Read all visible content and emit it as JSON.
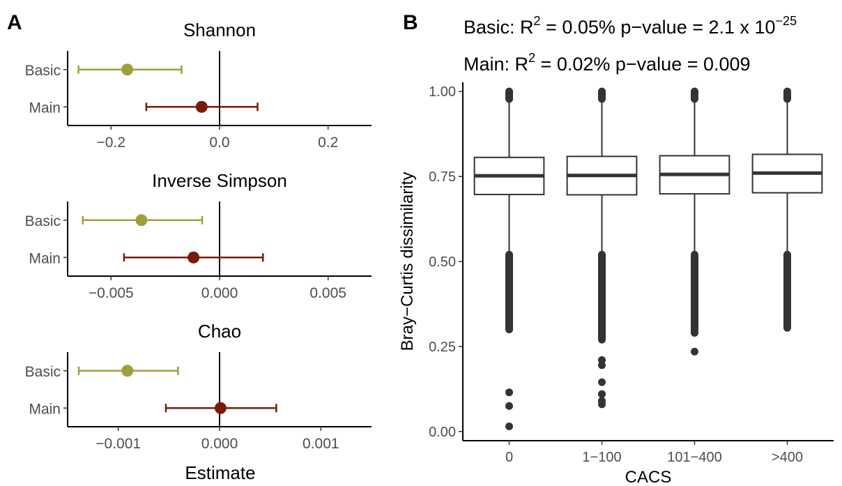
{
  "panel_a": {
    "tag": "A",
    "xlabel": "Estimate",
    "colors": {
      "Basic": "#a0a03a",
      "Main": "#7a1a08"
    }
  },
  "panel_b": {
    "tag": "B",
    "stats": [
      {
        "model": "Basic",
        "prefix": "Basic: R",
        "r2_sup": "2",
        "r2_text": " = 0.05%  p−value = 2.1 x 10",
        "p_exp": "−25"
      },
      {
        "model": "Main",
        "prefix": "Main: R",
        "r2_sup": "2",
        "r2_text": " = 0.02%  p−value = 0.009",
        "p_exp": ""
      }
    ]
  },
  "chart_data": [
    {
      "type": "scatter",
      "chart_kind": "forest",
      "title": "Shannon",
      "categories": [
        "Basic",
        "Main"
      ],
      "series": [
        {
          "name": "Basic",
          "estimate": -0.17,
          "ci_low": -0.26,
          "ci_high": -0.07
        },
        {
          "name": "Main",
          "estimate": -0.033,
          "ci_low": -0.135,
          "ci_high": 0.07
        }
      ],
      "xlim": [
        -0.28,
        0.28
      ],
      "xticks": [
        -0.2,
        0.0,
        0.2
      ],
      "xtick_labels": [
        "−0.2",
        "0.0",
        "0.2"
      ],
      "reference_line": 0
    },
    {
      "type": "scatter",
      "chart_kind": "forest",
      "title": "Inverse Simpson",
      "categories": [
        "Basic",
        "Main"
      ],
      "series": [
        {
          "name": "Basic",
          "estimate": -0.0036,
          "ci_low": -0.0063,
          "ci_high": -0.0008
        },
        {
          "name": "Main",
          "estimate": -0.0012,
          "ci_low": -0.0044,
          "ci_high": 0.002
        }
      ],
      "xlim": [
        -0.007,
        0.007
      ],
      "xticks": [
        -0.005,
        0.0,
        0.005
      ],
      "xtick_labels": [
        "−0.005",
        "0.000",
        "0.005"
      ],
      "reference_line": 0
    },
    {
      "type": "scatter",
      "chart_kind": "forest",
      "title": "Chao",
      "categories": [
        "Basic",
        "Main"
      ],
      "series": [
        {
          "name": "Basic",
          "estimate": -0.00091,
          "ci_low": -0.00139,
          "ci_high": -0.00041
        },
        {
          "name": "Main",
          "estimate": 1e-05,
          "ci_low": -0.00053,
          "ci_high": 0.00056
        }
      ],
      "xlim": [
        -0.0015,
        0.0015
      ],
      "xticks": [
        -0.001,
        0.0,
        0.001
      ],
      "xtick_labels": [
        "−0.001",
        "0.000",
        "0.001"
      ],
      "reference_line": 0,
      "xlabel": "Estimate"
    },
    {
      "type": "box",
      "categories": [
        "0",
        "1−100",
        "101−400",
        ">400"
      ],
      "xlabel": "CACS",
      "ylabel": "Bray−Curtis dissimilarity",
      "ylim": [
        0.0,
        1.0
      ],
      "yticks": [
        0.0,
        0.25,
        0.5,
        0.75,
        1.0
      ],
      "ytick_labels": [
        "0.00",
        "0.25",
        "0.50",
        "0.75",
        "1.00"
      ],
      "boxes": [
        {
          "category": "0",
          "q1": 0.697,
          "median": 0.752,
          "q3": 0.806,
          "whisker_low": 0.525,
          "whisker_high": 0.975,
          "outliers_low": [
            0.115,
            0.075,
            0.015
          ],
          "outlier_band_low": [
            0.3,
            0.52
          ],
          "outlier_band_high": [
            0.978,
            1.0
          ]
        },
        {
          "category": "1−100",
          "q1": 0.696,
          "median": 0.753,
          "q3": 0.809,
          "whisker_low": 0.525,
          "whisker_high": 0.975,
          "outliers_low": [
            0.21,
            0.195,
            0.145,
            0.11,
            0.09,
            0.08
          ],
          "outlier_band_low": [
            0.27,
            0.52
          ],
          "outlier_band_high": [
            0.978,
            1.0
          ]
        },
        {
          "category": "101−400",
          "q1": 0.699,
          "median": 0.756,
          "q3": 0.811,
          "whisker_low": 0.525,
          "whisker_high": 0.975,
          "outliers_low": [
            0.235
          ],
          "outlier_band_low": [
            0.29,
            0.52
          ],
          "outlier_band_high": [
            0.978,
            1.0
          ]
        },
        {
          "category": ">400",
          "q1": 0.702,
          "median": 0.76,
          "q3": 0.815,
          "whisker_low": 0.525,
          "whisker_high": 0.975,
          "outliers_low": [],
          "outlier_band_low": [
            0.305,
            0.52
          ],
          "outlier_band_high": [
            0.978,
            1.0
          ]
        }
      ]
    }
  ]
}
